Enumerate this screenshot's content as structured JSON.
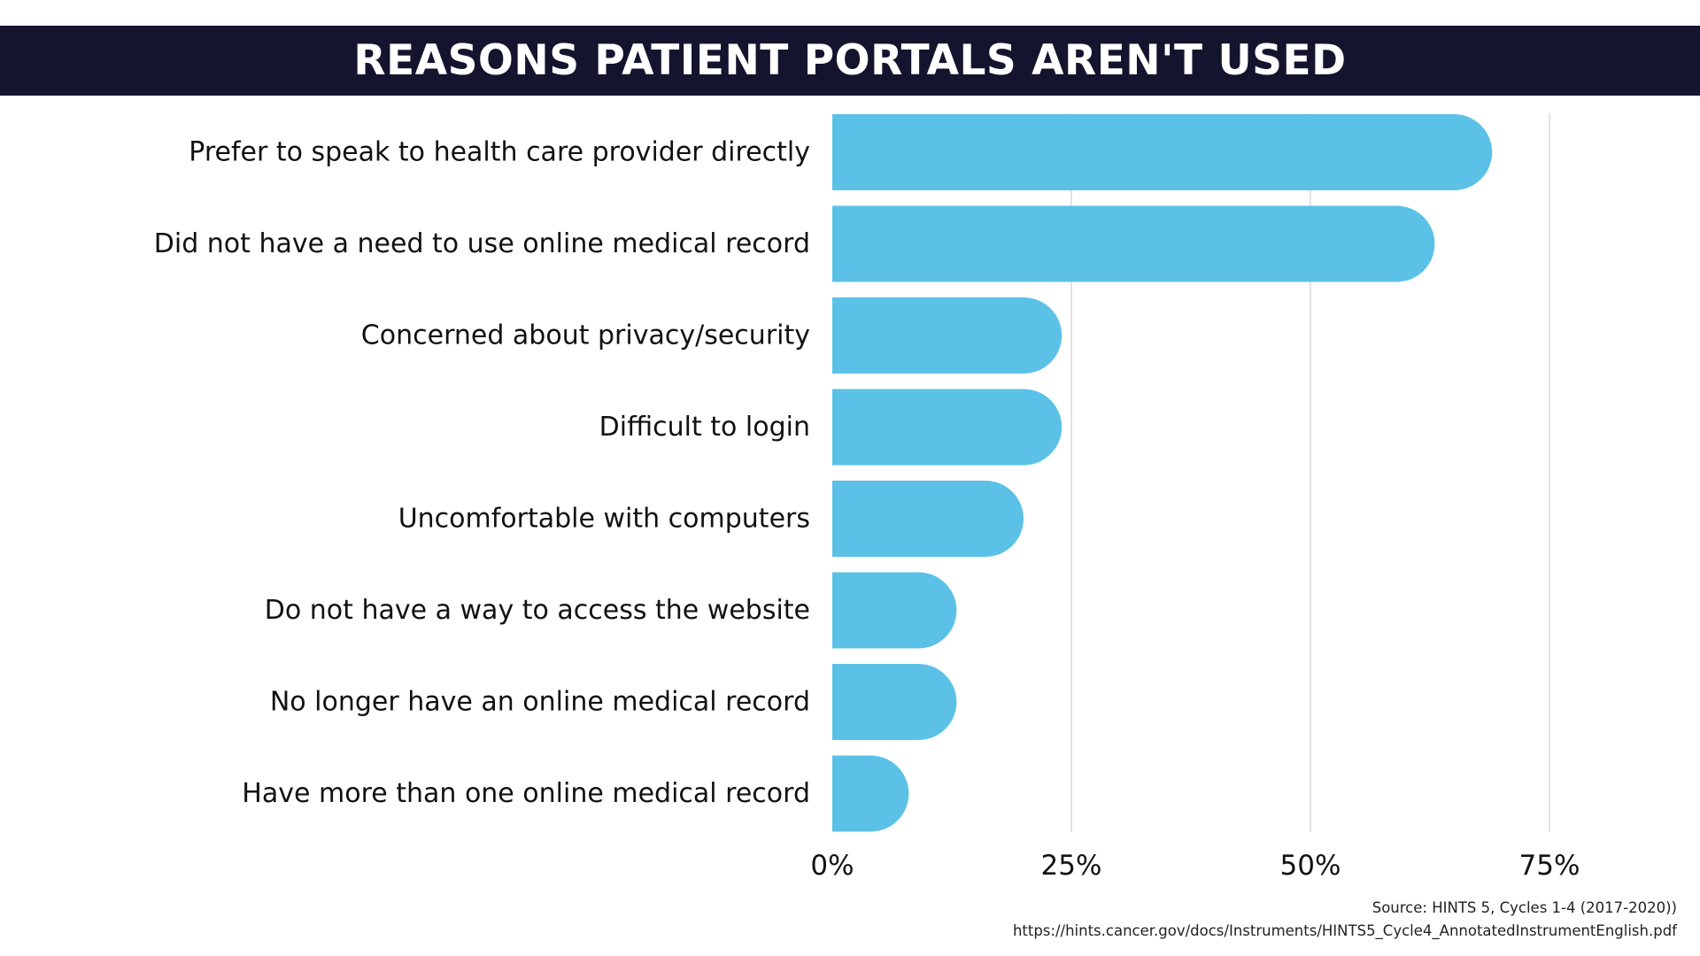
{
  "header": {
    "title": "REASONS PATIENT PORTALS AREN'T USED"
  },
  "chart_data": {
    "type": "bar",
    "orientation": "horizontal",
    "title": "REASONS PATIENT PORTALS AREN'T USED",
    "categories": [
      "Prefer to speak to health care provider directly",
      "Did not have a need to use online medical record",
      "Concerned about privacy/security",
      "Difficult to login",
      "Uncomfortable with computers",
      "Do not have a way to access the website",
      "No longer have an online medical record",
      "Have more than one online medical record"
    ],
    "values": [
      69,
      63,
      24,
      24,
      20,
      13,
      13,
      8
    ],
    "xlim": [
      0,
      75
    ],
    "x_ticks": [
      0,
      25,
      50,
      75
    ],
    "x_tick_labels": [
      "0%",
      "25%",
      "50%",
      "75%"
    ],
    "xlabel": "",
    "ylabel": "",
    "grid": "vertical",
    "bar_color": "#5bc1e6"
  },
  "footer": {
    "source": "Source: HINTS 5, Cycles 1-4 (2017-2020))",
    "url": "https://hints.cancer.gov/docs/Instruments/HINTS5_Cycle4_AnnotatedInstrumentEnglish.pdf"
  },
  "colors": {
    "title_bar": "#14142e",
    "bar": "#5bc1e6",
    "grid": "#d9d9d9",
    "text": "#111111"
  }
}
